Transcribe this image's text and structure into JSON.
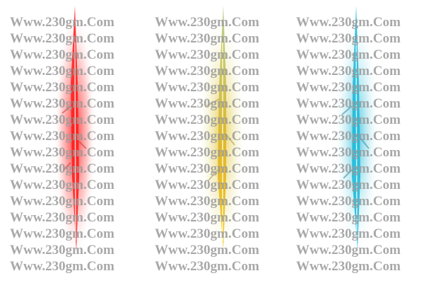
{
  "watermark": {
    "text": "Www.230gm.Com"
  }
}
